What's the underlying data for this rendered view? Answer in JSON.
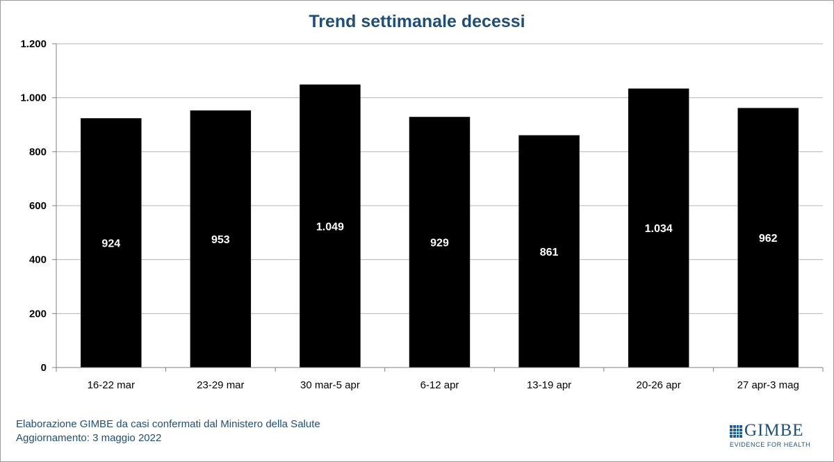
{
  "chart_data": {
    "type": "bar",
    "title": "Trend settimanale decessi",
    "categories": [
      "16-22 mar",
      "23-29 mar",
      "30 mar-5 apr",
      "6-12 apr",
      "13-19 apr",
      "20-26 apr",
      "27 apr-3 mag"
    ],
    "values": [
      924,
      953,
      1049,
      929,
      861,
      1034,
      962
    ],
    "data_labels": [
      "924",
      "953",
      "1.049",
      "929",
      "861",
      "1.034",
      "962"
    ],
    "ylim": [
      0,
      1200
    ],
    "yticks": [
      0,
      200,
      400,
      600,
      800,
      1000,
      1200
    ],
    "ytick_labels": [
      "0",
      "200",
      "400",
      "600",
      "800",
      "1.000",
      "1.200"
    ],
    "xlabel": "",
    "ylabel": "",
    "grid": true,
    "bar_color": "#000000",
    "label_color": "#ffffff",
    "title_color": "#1f4e79"
  },
  "footer": {
    "line1": "Elaborazione GIMBE da casi confermati dal Ministero della Salute",
    "line2": "Aggiornamento: 3 maggio 2022"
  },
  "logo": {
    "name": "GIMBE",
    "tagline": "EVIDENCE FOR HEALTH"
  }
}
